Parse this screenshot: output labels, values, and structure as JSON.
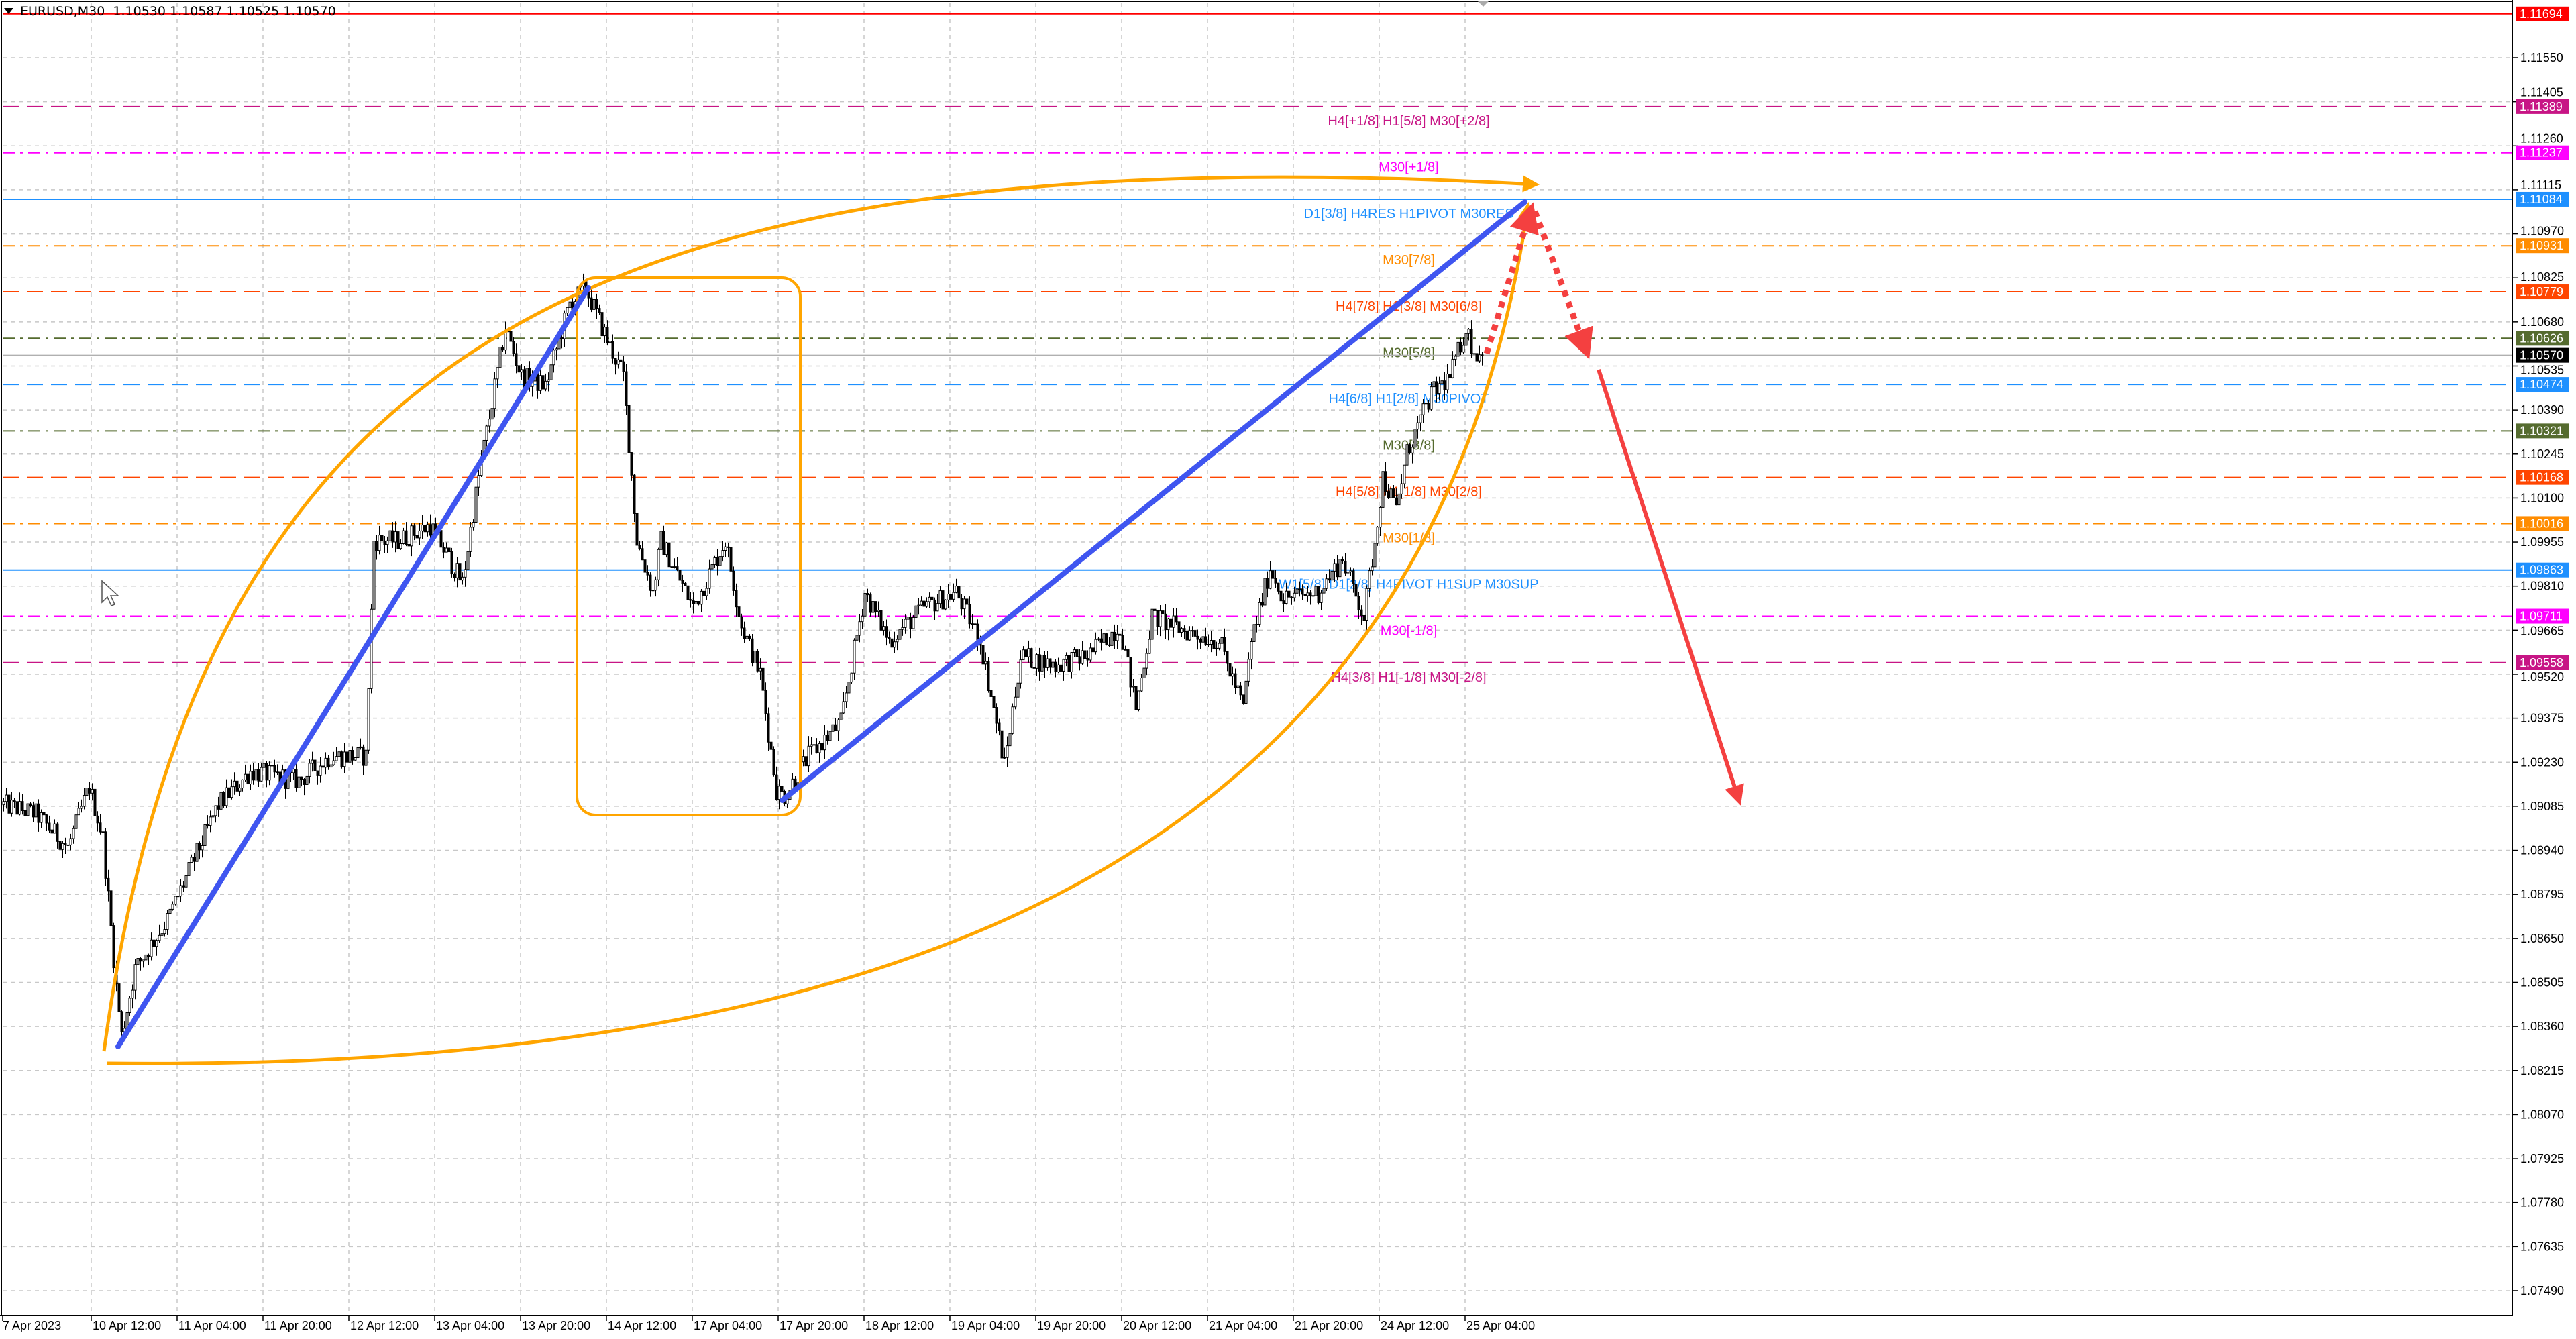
{
  "window": {
    "title": "EURUSD,M30  1.10530 1.10587 1.10525 1.10570"
  },
  "colors": {
    "bull_candle": "#ffffff",
    "bear_candle": "#000000",
    "trend": "#3f55f0",
    "curve": "#ffa500",
    "forecast": "#f44040",
    "grid": "#c8c8c8"
  },
  "chart_data": {
    "type": "candlestick",
    "symbol": "EURUSD",
    "timeframe": "M30",
    "ohlc_last": {
      "open": 1.1053,
      "high": 1.10587,
      "low": 1.10525,
      "close": 1.1057
    },
    "ylim": [
      1.074,
      1.1172
    ],
    "grid": true,
    "price_ticks": [
      "1.11550",
      "1.11405",
      "1.11260",
      "1.11115",
      "1.10970",
      "1.10825",
      "1.10680",
      "1.10535",
      "1.10390",
      "1.10245",
      "1.10100",
      "1.09955",
      "1.09810",
      "1.09665",
      "1.09520",
      "1.09375",
      "1.09230",
      "1.09085",
      "1.08940",
      "1.08795",
      "1.08650",
      "1.08505",
      "1.08360",
      "1.08215",
      "1.08070",
      "1.07925",
      "1.07780",
      "1.07635",
      "1.07490"
    ],
    "time_ticks": [
      "7 Apr 2023",
      "10 Apr 12:00",
      "11 Apr 04:00",
      "11 Apr 20:00",
      "12 Apr 12:00",
      "13 Apr 04:00",
      "13 Apr 20:00",
      "14 Apr 12:00",
      "17 Apr 04:00",
      "17 Apr 20:00",
      "18 Apr 12:00",
      "19 Apr 04:00",
      "19 Apr 20:00",
      "20 Apr 12:00",
      "21 Apr 04:00",
      "21 Apr 20:00",
      "24 Apr 12:00",
      "25 Apr 04:00"
    ],
    "price_path": [
      [
        0,
        1.0909
      ],
      [
        12,
        1.0906
      ],
      [
        24,
        1.0895
      ],
      [
        32,
        1.0915
      ],
      [
        37,
        1.0898
      ],
      [
        42,
        1.0849
      ],
      [
        44,
        1.0833
      ],
      [
        49,
        1.0855
      ],
      [
        61,
        1.0871
      ],
      [
        80,
        1.0909
      ],
      [
        92,
        1.092
      ],
      [
        110,
        1.0917
      ],
      [
        122,
        1.0925
      ],
      [
        135,
        1.0925
      ],
      [
        138,
        1.0996
      ],
      [
        147,
        1.0996
      ],
      [
        159,
        1.1001
      ],
      [
        171,
        1.0982
      ],
      [
        177,
        1.1017
      ],
      [
        187,
        1.1066
      ],
      [
        193,
        1.105
      ],
      [
        202,
        1.1047
      ],
      [
        211,
        1.1074
      ],
      [
        217,
        1.1079
      ],
      [
        226,
        1.106
      ],
      [
        231,
        1.105
      ],
      [
        236,
        1.0996
      ],
      [
        242,
        1.0979
      ],
      [
        245,
        1.0996
      ],
      [
        257,
        1.0974
      ],
      [
        269,
        1.0996
      ],
      [
        275,
        1.0968
      ],
      [
        282,
        1.0952
      ],
      [
        288,
        1.0914
      ],
      [
        291,
        1.0912
      ],
      [
        300,
        1.0925
      ],
      [
        312,
        1.0936
      ],
      [
        321,
        1.0979
      ],
      [
        330,
        1.0963
      ],
      [
        343,
        1.0974
      ],
      [
        355,
        1.0979
      ],
      [
        364,
        1.0963
      ],
      [
        370,
        1.0936
      ],
      [
        373,
        1.0922
      ],
      [
        379,
        1.0958
      ],
      [
        392,
        1.0955
      ],
      [
        404,
        1.0958
      ],
      [
        416,
        1.0968
      ],
      [
        422,
        1.0941
      ],
      [
        428,
        1.0971
      ],
      [
        441,
        1.0966
      ],
      [
        453,
        1.0963
      ],
      [
        462,
        1.0941
      ],
      [
        465,
        1.0963
      ],
      [
        472,
        1.0987
      ],
      [
        477,
        1.0977
      ],
      [
        490,
        1.0979
      ],
      [
        499,
        1.099
      ],
      [
        507,
        1.0971
      ],
      [
        511,
        1.0996
      ],
      [
        514,
        1.1017
      ],
      [
        519,
        1.1006
      ],
      [
        523,
        1.1025
      ],
      [
        532,
        1.1044
      ],
      [
        539,
        1.105
      ],
      [
        545,
        1.1066
      ],
      [
        548,
        1.1058
      ],
      [
        551,
        1.1057
      ]
    ],
    "levels": [
      {
        "price": 1.11694,
        "value": "1.11694",
        "label": "",
        "color": "#ff0000",
        "style": "solid"
      },
      {
        "price": 1.11389,
        "value": "1.11389",
        "label": "H4[+1/8] H1[5/8] M30[+2/8]",
        "color": "#c71585",
        "style": "dash"
      },
      {
        "price": 1.11237,
        "value": "1.11237",
        "label": "M30[+1/8]",
        "color": "#ff00ff",
        "style": "dashdot"
      },
      {
        "price": 1.11084,
        "value": "1.11084",
        "label": "D1[3/8] H4RES H1PIVOT M30RES",
        "color": "#1e90ff",
        "style": "solid"
      },
      {
        "price": 1.10931,
        "value": "1.10931",
        "label": "M30[7/8]",
        "color": "#ff8c00",
        "style": "dashdot"
      },
      {
        "price": 1.10779,
        "value": "1.10779",
        "label": "H4[7/8] H1[3/8] M30[6/8]",
        "color": "#ff4500",
        "style": "dash"
      },
      {
        "price": 1.10626,
        "value": "1.10626",
        "label": "M30[5/8]",
        "color": "#556b2f",
        "style": "dashdot"
      },
      {
        "price": 1.1057,
        "value": "1.10570",
        "label": "",
        "color": "#000000",
        "style": "current"
      },
      {
        "price": 1.10474,
        "value": "1.10474",
        "label": "H4[6/8] H1[2/8] M30PIVOT",
        "color": "#1e90ff",
        "style": "dash"
      },
      {
        "price": 1.10321,
        "value": "1.10321",
        "label": "M30[3/8]",
        "color": "#556b2f",
        "style": "dashdot"
      },
      {
        "price": 1.10168,
        "value": "1.10168",
        "label": "H4[5/8] H1[1/8] M30[2/8]",
        "color": "#ff4500",
        "style": "dash"
      },
      {
        "price": 1.10016,
        "value": "1.10016",
        "label": "M30[1/8]",
        "color": "#ff8c00",
        "style": "dashdot"
      },
      {
        "price": 1.09863,
        "value": "1.09863",
        "label": "W1[5/8] D1[2/8] H4PIVOT H1SUP M30SUP",
        "color": "#1e90ff",
        "style": "solid"
      },
      {
        "price": 1.09711,
        "value": "1.09711",
        "label": "M30[-1/8]",
        "color": "#ff00ff",
        "style": "dashdot"
      },
      {
        "price": 1.09558,
        "value": "1.09558",
        "label": "H4[3/8] H1[-1/8] M30[-2/8]",
        "color": "#c71585",
        "style": "dash"
      }
    ]
  }
}
